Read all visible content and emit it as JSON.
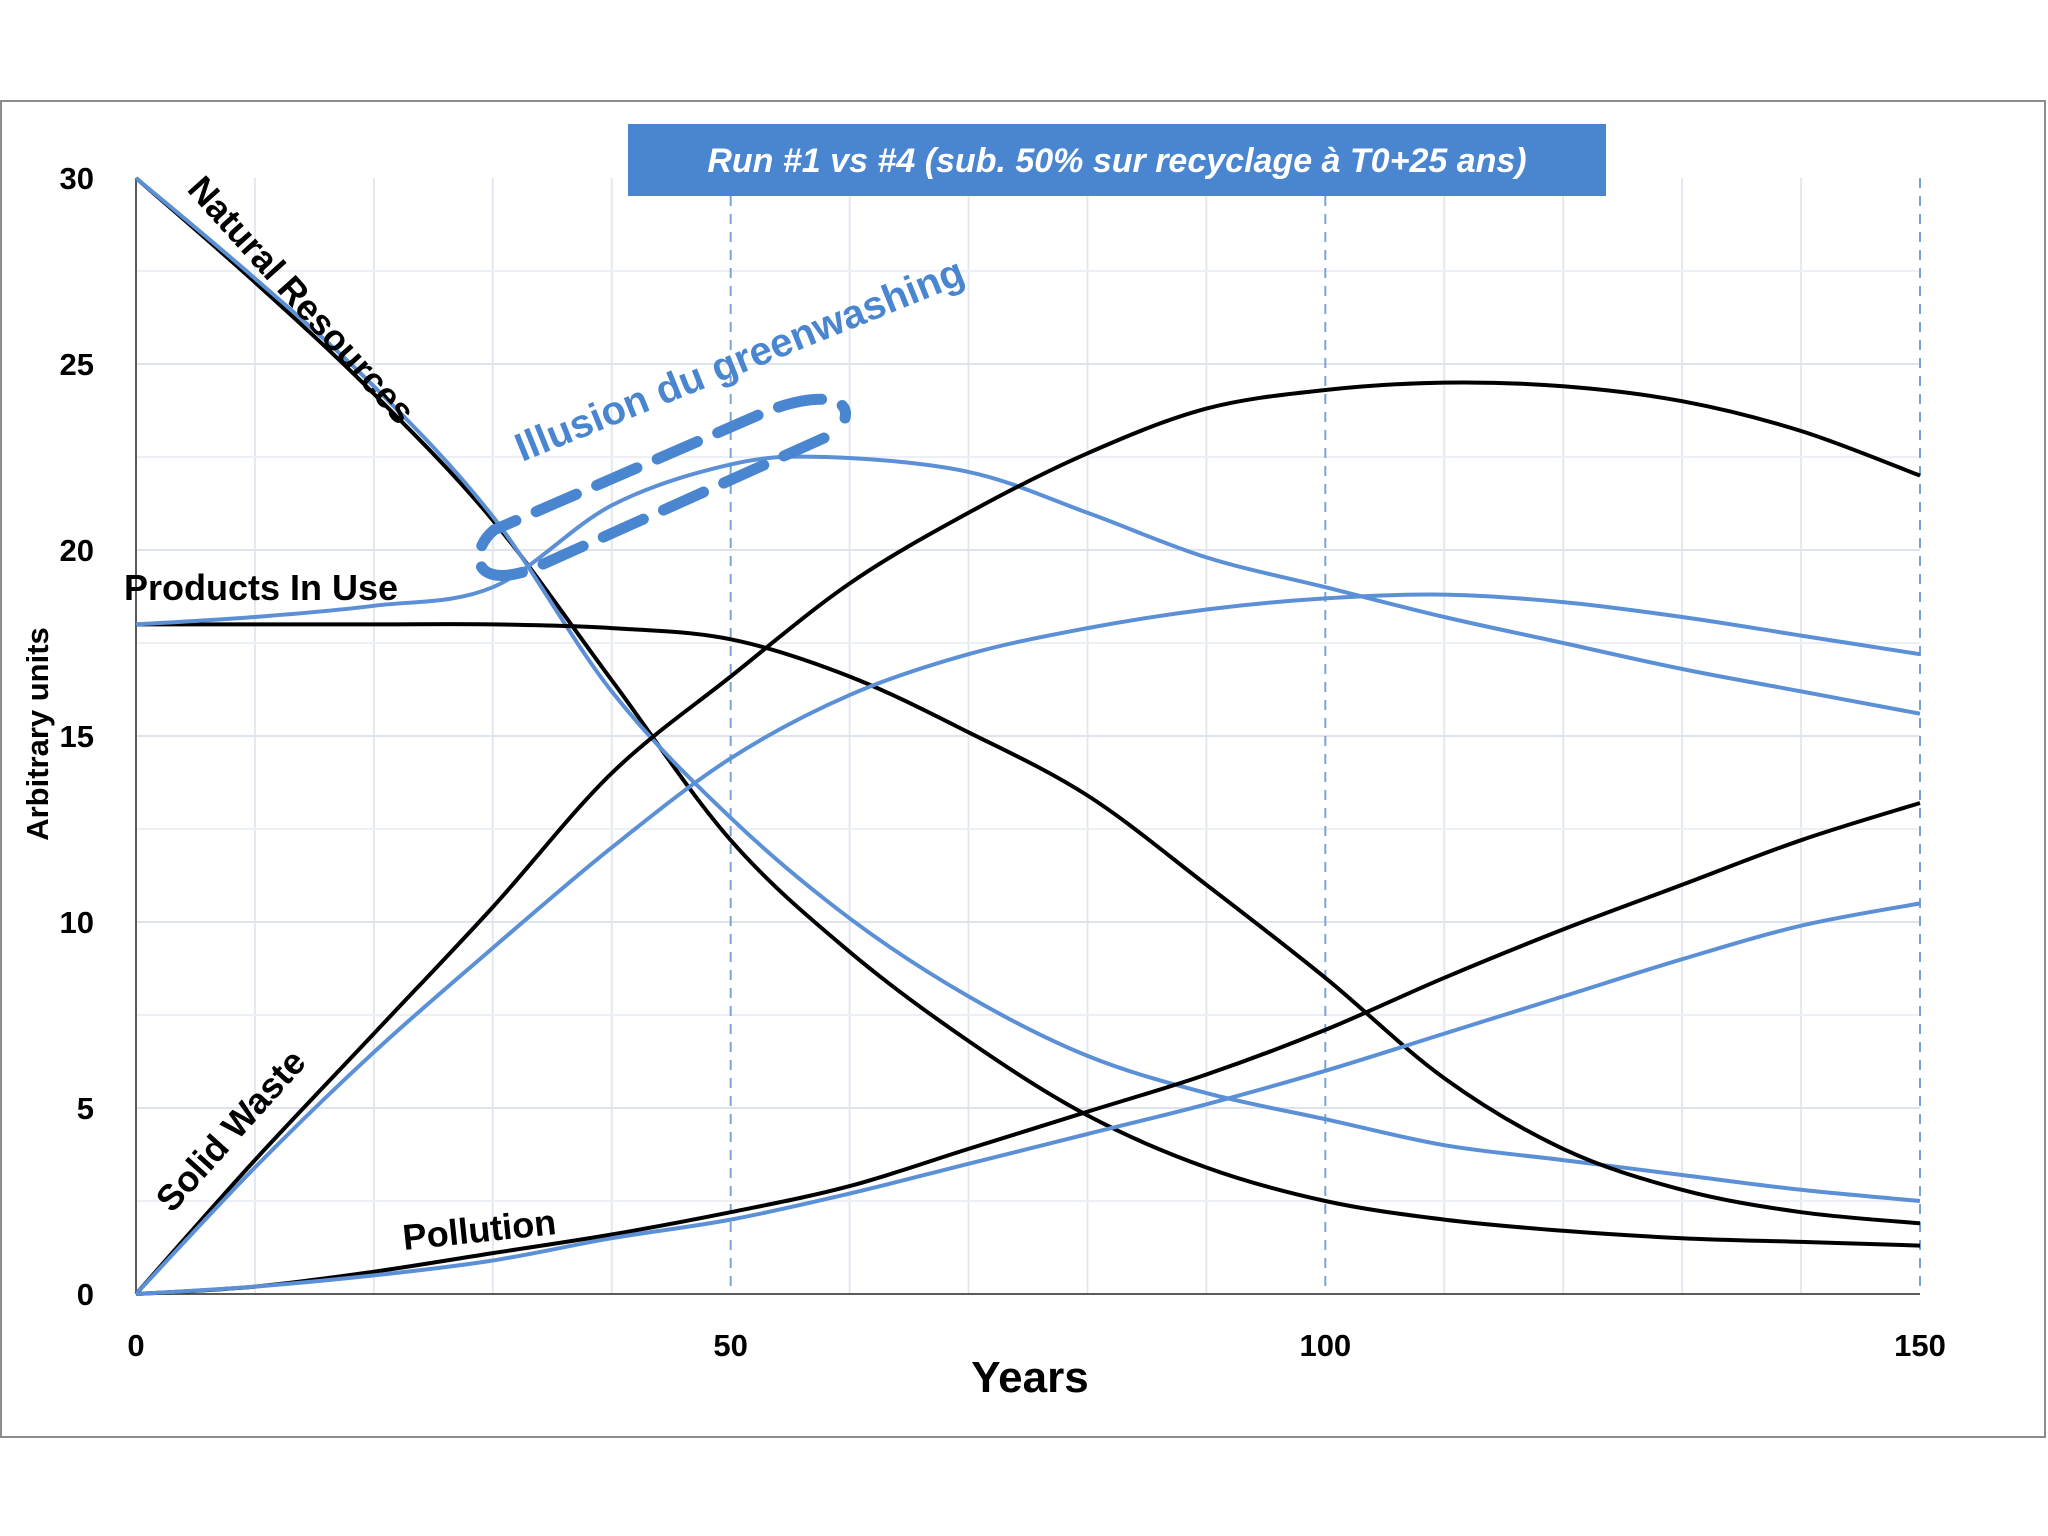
{
  "chart_data": {
    "type": "line",
    "title": "Run #1 vs #4 (sub. 50% sur recyclage à T0+25 ans)",
    "xlabel": "Years",
    "ylabel": "Arbitrary units",
    "xlim": [
      0,
      150
    ],
    "ylim": [
      0,
      30
    ],
    "xticks": [
      "0",
      "50",
      "100",
      "150"
    ],
    "yticks": [
      "0",
      "5",
      "10",
      "15",
      "20",
      "25",
      "30"
    ],
    "grid": true,
    "colors": {
      "run1": "#000000",
      "run4": "#5b8fd6",
      "title_bg": "#4a86d0",
      "annotation": "#4a86d0"
    },
    "annotation": "Illusion du greenwashing",
    "labels": {
      "natural_resources": "Natural Resources",
      "products_in_use": "Products In Use",
      "solid_waste": "Solid Waste",
      "pollution": "Pollution"
    },
    "series": [
      {
        "name": "Natural Resources (Run #1)",
        "color": "black",
        "points": [
          [
            0,
            30
          ],
          [
            10,
            27.2
          ],
          [
            20,
            24.2
          ],
          [
            30,
            20.8
          ],
          [
            40,
            16.5
          ],
          [
            50,
            12.2
          ],
          [
            60,
            9.2
          ],
          [
            70,
            6.8
          ],
          [
            80,
            4.8
          ],
          [
            90,
            3.4
          ],
          [
            100,
            2.5
          ],
          [
            110,
            2.0
          ],
          [
            120,
            1.7
          ],
          [
            130,
            1.5
          ],
          [
            140,
            1.4
          ],
          [
            150,
            1.3
          ]
        ]
      },
      {
        "name": "Natural Resources (Run #4)",
        "color": "blue",
        "points": [
          [
            0,
            30
          ],
          [
            10,
            27.3
          ],
          [
            20,
            24.4
          ],
          [
            30,
            20.9
          ],
          [
            40,
            16.2
          ],
          [
            50,
            12.8
          ],
          [
            60,
            10.1
          ],
          [
            70,
            8.0
          ],
          [
            80,
            6.4
          ],
          [
            90,
            5.4
          ],
          [
            100,
            4.7
          ],
          [
            110,
            4.0
          ],
          [
            120,
            3.6
          ],
          [
            130,
            3.2
          ],
          [
            140,
            2.8
          ],
          [
            150,
            2.5
          ]
        ]
      },
      {
        "name": "Products In Use (Run #1)",
        "color": "black",
        "points": [
          [
            0,
            18
          ],
          [
            10,
            18
          ],
          [
            20,
            18
          ],
          [
            30,
            18
          ],
          [
            40,
            17.9
          ],
          [
            50,
            17.6
          ],
          [
            60,
            16.6
          ],
          [
            70,
            15.1
          ],
          [
            80,
            13.4
          ],
          [
            90,
            11.0
          ],
          [
            100,
            8.5
          ],
          [
            110,
            5.8
          ],
          [
            120,
            3.9
          ],
          [
            130,
            2.8
          ],
          [
            140,
            2.2
          ],
          [
            150,
            1.9
          ]
        ]
      },
      {
        "name": "Products In Use (Run #4)",
        "color": "blue",
        "points": [
          [
            0,
            18
          ],
          [
            10,
            18.2
          ],
          [
            20,
            18.5
          ],
          [
            30,
            19.0
          ],
          [
            40,
            21.2
          ],
          [
            50,
            22.3
          ],
          [
            58,
            22.5
          ],
          [
            70,
            22.1
          ],
          [
            80,
            21.0
          ],
          [
            90,
            19.8
          ],
          [
            100,
            19.0
          ],
          [
            110,
            18.2
          ],
          [
            120,
            17.5
          ],
          [
            130,
            16.8
          ],
          [
            140,
            16.2
          ],
          [
            150,
            15.6
          ]
        ]
      },
      {
        "name": "Solid Waste (Run #1)",
        "color": "black",
        "points": [
          [
            0,
            0
          ],
          [
            10,
            3.6
          ],
          [
            20,
            7.0
          ],
          [
            30,
            10.4
          ],
          [
            40,
            14.0
          ],
          [
            50,
            16.6
          ],
          [
            60,
            19.1
          ],
          [
            70,
            21.0
          ],
          [
            80,
            22.6
          ],
          [
            90,
            23.8
          ],
          [
            100,
            24.3
          ],
          [
            110,
            24.5
          ],
          [
            120,
            24.4
          ],
          [
            130,
            24.0
          ],
          [
            140,
            23.2
          ],
          [
            150,
            22.0
          ]
        ]
      },
      {
        "name": "Solid Waste (Run #4)",
        "color": "blue",
        "points": [
          [
            0,
            0
          ],
          [
            10,
            3.4
          ],
          [
            20,
            6.5
          ],
          [
            30,
            9.3
          ],
          [
            40,
            12.0
          ],
          [
            50,
            14.4
          ],
          [
            60,
            16.1
          ],
          [
            70,
            17.2
          ],
          [
            80,
            17.9
          ],
          [
            90,
            18.4
          ],
          [
            100,
            18.7
          ],
          [
            110,
            18.8
          ],
          [
            120,
            18.6
          ],
          [
            130,
            18.2
          ],
          [
            140,
            17.7
          ],
          [
            150,
            17.2
          ]
        ]
      },
      {
        "name": "Pollution (Run #1)",
        "color": "black",
        "points": [
          [
            0,
            0
          ],
          [
            10,
            0.2
          ],
          [
            20,
            0.6
          ],
          [
            30,
            1.1
          ],
          [
            40,
            1.6
          ],
          [
            50,
            2.2
          ],
          [
            60,
            2.9
          ],
          [
            70,
            3.9
          ],
          [
            80,
            4.9
          ],
          [
            90,
            5.9
          ],
          [
            100,
            7.1
          ],
          [
            110,
            8.5
          ],
          [
            120,
            9.8
          ],
          [
            130,
            11.0
          ],
          [
            140,
            12.2
          ],
          [
            150,
            13.2
          ]
        ]
      },
      {
        "name": "Pollution (Run #4)",
        "color": "blue",
        "points": [
          [
            0,
            0
          ],
          [
            10,
            0.2
          ],
          [
            20,
            0.5
          ],
          [
            30,
            0.9
          ],
          [
            40,
            1.5
          ],
          [
            50,
            2.0
          ],
          [
            60,
            2.7
          ],
          [
            70,
            3.5
          ],
          [
            80,
            4.3
          ],
          [
            90,
            5.1
          ],
          [
            100,
            6.0
          ],
          [
            110,
            7.0
          ],
          [
            120,
            8.0
          ],
          [
            130,
            9.0
          ],
          [
            140,
            9.9
          ],
          [
            150,
            10.5
          ]
        ]
      }
    ]
  }
}
